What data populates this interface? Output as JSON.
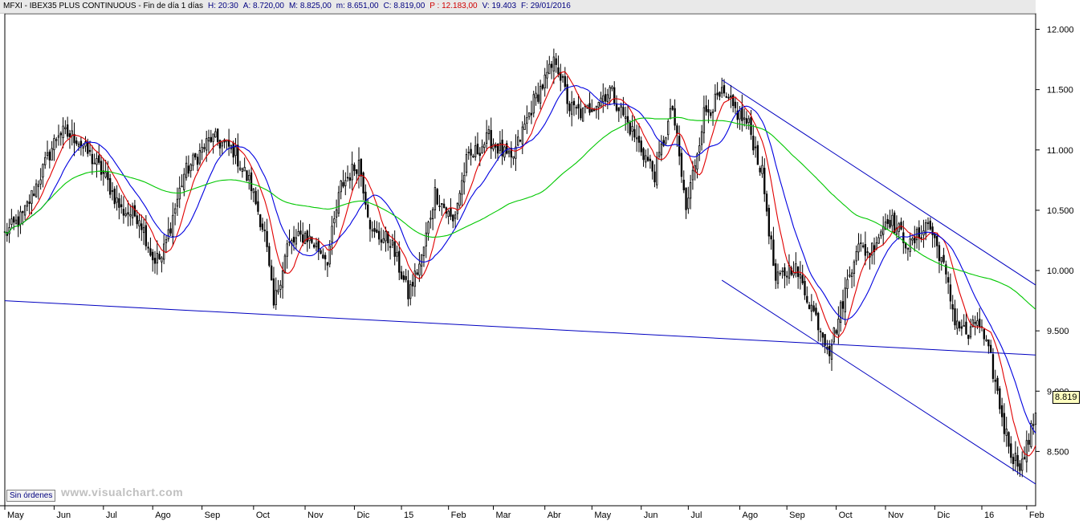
{
  "header": {
    "symbol": "MFXI - IBEX35 PLUS CONTINUOUS - Fin de día 1 días",
    "hour": "H: 20:30",
    "open": "A: 8.720,00",
    "high": "M: 8.825,00",
    "low": "m: 8.651,00",
    "close": "C: 8.819,00",
    "prev": "P : 12.183,00",
    "volume": "V: 19.403",
    "date": "F: 29/01/2016"
  },
  "controls": {
    "no_orders_label": "Sin órdenes"
  },
  "watermark": "www.visualchart.com",
  "last_price_label": "8.819",
  "colors": {
    "background": "#ffffff",
    "candle": "#000000",
    "ma_short": "#e00000",
    "ma_medium": "#0000e0",
    "ma_long": "#00c800",
    "trendline": "#0000c0"
  },
  "chart_data": {
    "type": "candlestick",
    "title": "MFXI - IBEX35 PLUS CONTINUOUS",
    "y_ticks": [
      "12.000",
      "11.500",
      "11.000",
      "10.500",
      "10.000",
      "9.500",
      "9.000",
      "8.500"
    ],
    "y_tick_values": [
      12000,
      11500,
      11000,
      10500,
      10000,
      9500,
      9000,
      8500
    ],
    "ylim": [
      8050,
      12130
    ],
    "x_ticks": [
      "May",
      "Jun",
      "Jul",
      "Ago",
      "Sep",
      "Oct",
      "Nov",
      "Dic",
      "15",
      "Feb",
      "Mar",
      "Abr",
      "May",
      "Jun",
      "Jul",
      "Ago",
      "Sep",
      "Oct",
      "Nov",
      "Dic",
      "16",
      "Feb"
    ],
    "x_tick_days": [
      0,
      22,
      44,
      66,
      88,
      111,
      134,
      156,
      177,
      198,
      218,
      241,
      262,
      284,
      305,
      328,
      349,
      371,
      393,
      415,
      436,
      456
    ],
    "x_range_days": [
      0,
      460
    ],
    "series_shape": [
      [
        0,
        10300
      ],
      [
        8,
        10450
      ],
      [
        15,
        10750
      ],
      [
        24,
        11150
      ],
      [
        32,
        11100
      ],
      [
        44,
        10800
      ],
      [
        52,
        10500
      ],
      [
        60,
        10450
      ],
      [
        66,
        10100
      ],
      [
        70,
        10100
      ],
      [
        80,
        10800
      ],
      [
        92,
        11100
      ],
      [
        102,
        11000
      ],
      [
        110,
        10700
      ],
      [
        116,
        10300
      ],
      [
        120,
        9700
      ],
      [
        126,
        10200
      ],
      [
        134,
        10300
      ],
      [
        144,
        10100
      ],
      [
        150,
        10700
      ],
      [
        158,
        10900
      ],
      [
        164,
        10300
      ],
      [
        172,
        10250
      ],
      [
        180,
        9800
      ],
      [
        186,
        10100
      ],
      [
        192,
        10650
      ],
      [
        200,
        10400
      ],
      [
        206,
        10900
      ],
      [
        216,
        11100
      ],
      [
        226,
        10900
      ],
      [
        236,
        11400
      ],
      [
        246,
        11750
      ],
      [
        252,
        11350
      ],
      [
        258,
        11300
      ],
      [
        270,
        11500
      ],
      [
        280,
        11150
      ],
      [
        290,
        10800
      ],
      [
        298,
        11350
      ],
      [
        304,
        10500
      ],
      [
        312,
        11300
      ],
      [
        320,
        11450
      ],
      [
        332,
        11200
      ],
      [
        338,
        10800
      ],
      [
        344,
        9900
      ],
      [
        352,
        10050
      ],
      [
        360,
        9700
      ],
      [
        368,
        9350
      ],
      [
        372,
        9600
      ],
      [
        380,
        10200
      ],
      [
        386,
        10150
      ],
      [
        394,
        10450
      ],
      [
        404,
        10200
      ],
      [
        412,
        10400
      ],
      [
        418,
        10100
      ],
      [
        424,
        9600
      ],
      [
        430,
        9450
      ],
      [
        434,
        9600
      ],
      [
        440,
        9250
      ],
      [
        446,
        8700
      ],
      [
        450,
        8450
      ],
      [
        454,
        8400
      ],
      [
        460,
        8800
      ]
    ],
    "series_candle_noise": 90,
    "moving_averages": [
      {
        "style": "ma_short",
        "period": 10
      },
      {
        "style": "ma_medium",
        "period": 20
      },
      {
        "style": "ma_long",
        "period": 80
      }
    ],
    "trendlines": [
      {
        "from": [
          0,
          9750
        ],
        "to": [
          460,
          9300
        ]
      },
      {
        "from": [
          320,
          11580
        ],
        "to": [
          460,
          9880
        ]
      },
      {
        "from": [
          320,
          9920
        ],
        "to": [
          460,
          8230
        ]
      }
    ],
    "last_value": 8819
  }
}
